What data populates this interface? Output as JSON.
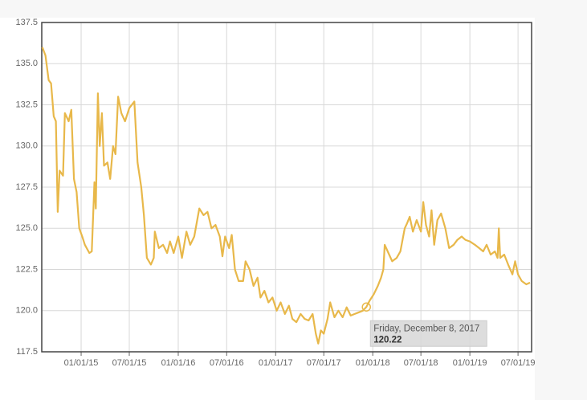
{
  "chart_data": {
    "type": "line",
    "x": [
      "2014-08-08",
      "2014-08-20",
      "2014-09-01",
      "2014-09-10",
      "2014-09-20",
      "2014-09-28",
      "2014-10-05",
      "2014-10-12",
      "2014-10-25",
      "2014-11-01",
      "2014-11-15",
      "2014-11-25",
      "2014-12-05",
      "2014-12-15",
      "2014-12-25",
      "2015-01-05",
      "2015-01-15",
      "2015-02-01",
      "2015-02-10",
      "2015-02-20",
      "2015-02-25",
      "2015-03-05",
      "2015-03-12",
      "2015-03-20",
      "2015-03-28",
      "2015-04-10",
      "2015-04-20",
      "2015-05-01",
      "2015-05-10",
      "2015-05-20",
      "2015-06-01",
      "2015-06-15",
      "2015-07-01",
      "2015-07-20",
      "2015-08-01",
      "2015-08-15",
      "2015-08-25",
      "2015-09-05",
      "2015-09-20",
      "2015-10-01",
      "2015-10-05",
      "2015-10-20",
      "2015-11-05",
      "2015-11-20",
      "2015-12-01",
      "2015-12-15",
      "2016-01-01",
      "2016-01-15",
      "2016-02-01",
      "2016-02-15",
      "2016-03-01",
      "2016-03-20",
      "2016-04-05",
      "2016-04-20",
      "2016-05-05",
      "2016-05-20",
      "2016-06-05",
      "2016-06-15",
      "2016-06-25",
      "2016-07-10",
      "2016-07-20",
      "2016-08-01",
      "2016-08-15",
      "2016-09-01",
      "2016-09-10",
      "2016-09-25",
      "2016-10-10",
      "2016-10-25",
      "2016-11-05",
      "2016-11-20",
      "2016-12-05",
      "2016-12-20",
      "2017-01-05",
      "2017-01-20",
      "2017-02-05",
      "2017-02-20",
      "2017-03-05",
      "2017-03-20",
      "2017-04-05",
      "2017-04-20",
      "2017-05-05",
      "2017-05-20",
      "2017-06-01",
      "2017-06-10",
      "2017-06-20",
      "2017-07-01",
      "2017-07-15",
      "2017-07-25",
      "2017-08-10",
      "2017-08-25",
      "2017-09-10",
      "2017-09-25",
      "2017-10-10",
      "2017-10-25",
      "2017-11-10",
      "2017-11-25",
      "2017-12-08",
      "2017-12-20",
      "2018-01-05",
      "2018-01-20",
      "2018-02-01",
      "2018-02-10",
      "2018-02-15",
      "2018-03-01",
      "2018-03-15",
      "2018-04-01",
      "2018-04-15",
      "2018-05-01",
      "2018-05-10",
      "2018-05-20",
      "2018-06-01",
      "2018-06-15",
      "2018-07-01",
      "2018-07-10",
      "2018-07-20",
      "2018-08-01",
      "2018-08-10",
      "2018-08-20",
      "2018-09-01",
      "2018-09-15",
      "2018-10-01",
      "2018-10-15",
      "2018-11-01",
      "2018-11-15",
      "2018-12-01",
      "2018-12-15",
      "2019-01-01",
      "2019-01-20",
      "2019-02-05",
      "2019-02-20",
      "2019-03-05",
      "2019-03-20",
      "2019-04-05",
      "2019-04-15",
      "2019-04-20",
      "2019-04-25",
      "2019-05-10",
      "2019-05-25",
      "2019-06-10",
      "2019-06-20",
      "2019-07-01",
      "2019-07-15",
      "2019-08-01",
      "2019-08-15"
    ],
    "series": [
      {
        "color": "#e8b84a",
        "values": [
          136.0,
          135.5,
          134.0,
          133.8,
          131.8,
          131.5,
          126.0,
          128.5,
          128.2,
          132.0,
          131.5,
          132.2,
          128.0,
          127.2,
          125.0,
          124.5,
          124.0,
          123.5,
          123.6,
          127.8,
          126.2,
          133.2,
          130.0,
          132.0,
          128.8,
          129.0,
          128.0,
          130.0,
          129.5,
          133.0,
          132.0,
          131.5,
          132.3,
          132.7,
          129.0,
          127.5,
          125.8,
          123.2,
          122.8,
          123.2,
          124.8,
          123.8,
          124.0,
          123.5,
          124.2,
          123.5,
          124.5,
          123.2,
          124.8,
          124.0,
          124.5,
          126.2,
          125.8,
          126.0,
          125.0,
          125.2,
          124.5,
          123.3,
          124.5,
          123.8,
          124.6,
          122.5,
          121.8,
          121.8,
          123.0,
          122.5,
          121.5,
          122.0,
          120.8,
          121.2,
          120.5,
          120.8,
          120.0,
          120.5,
          119.8,
          120.3,
          119.5,
          119.3,
          119.8,
          119.5,
          119.4,
          119.8,
          118.6,
          118.0,
          118.8,
          118.6,
          119.5,
          120.5,
          119.6,
          120.0,
          119.6,
          120.2,
          119.7,
          119.8,
          119.9,
          120.0,
          120.22,
          120.6,
          121.0,
          121.5,
          122.0,
          122.5,
          124.0,
          123.5,
          123.0,
          123.2,
          123.6,
          125.0,
          125.3,
          125.7,
          124.8,
          125.5,
          124.8,
          126.6,
          125.2,
          124.5,
          126.1,
          124.0,
          125.5,
          125.9,
          125.0,
          123.8,
          124.0,
          124.3,
          124.5,
          124.3,
          124.2,
          124.0,
          123.8,
          123.6,
          124.0,
          123.4,
          123.6,
          123.2,
          125.0,
          123.2,
          123.4,
          122.8,
          122.2,
          123.0,
          122.2,
          121.8,
          121.6,
          121.7
        ]
      }
    ],
    "xlim": [
      "2014-08-06",
      "2019-08-21"
    ],
    "xticks": [
      {
        "value": "2015-01-01",
        "label": "01/01/15"
      },
      {
        "value": "2015-07-01",
        "label": "07/01/15"
      },
      {
        "value": "2016-01-01",
        "label": "01/01/16"
      },
      {
        "value": "2016-07-01",
        "label": "07/01/16"
      },
      {
        "value": "2017-01-01",
        "label": "01/01/17"
      },
      {
        "value": "2017-07-01",
        "label": "07/01/17"
      },
      {
        "value": "2018-01-01",
        "label": "01/01/18"
      },
      {
        "value": "2018-07-01",
        "label": "07/01/18"
      },
      {
        "value": "2019-01-01",
        "label": "01/01/19"
      },
      {
        "value": "2019-07-01",
        "label": "07/01/19"
      }
    ],
    "ylim": [
      117.5,
      137.5
    ],
    "yticks": [
      117.5,
      {
        "value": 120,
        "label": "120.0"
      },
      122.5,
      {
        "value": 125,
        "label": "125.0"
      },
      127.5,
      {
        "value": 130,
        "label": "130.0"
      },
      132.5,
      {
        "value": 135,
        "label": "135.0"
      },
      137.5
    ],
    "grid": true,
    "tooltip": {
      "title": "Friday, December 8, 2017",
      "value": 120.22,
      "index": 96
    }
  }
}
